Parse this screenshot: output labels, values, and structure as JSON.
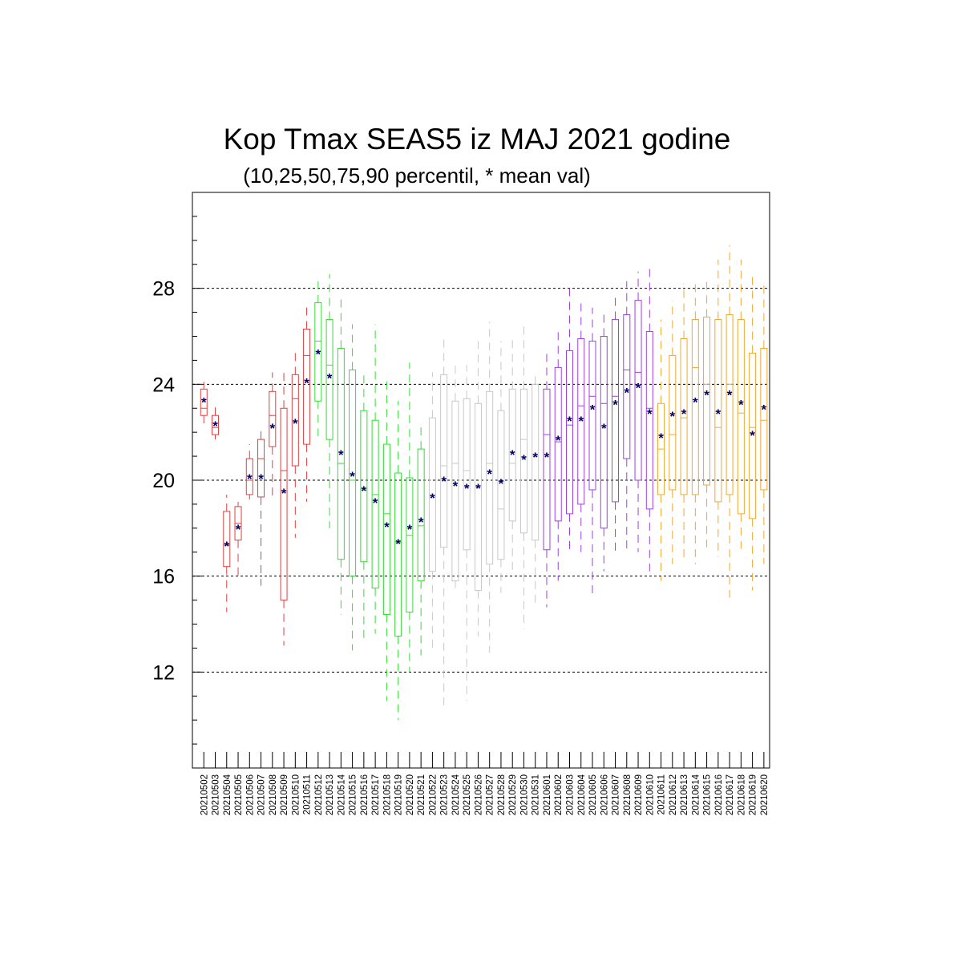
{
  "chart_data": {
    "type": "boxplot",
    "title": "Kop Tmax SEAS5 iz MAJ 2021 godine",
    "subtitle": "(10,25,50,75,90 percentil, * mean val)",
    "ylim": [
      8.0,
      32.0
    ],
    "yticks": [
      12,
      16,
      20,
      24,
      28
    ],
    "grid": "horizontal dashed at major ticks",
    "mean_marker": "*",
    "mean_color": "#000066",
    "groups": [
      {
        "color": "#e04040"
      },
      {
        "color": "#33dd33"
      },
      {
        "color": "#c8c8c8"
      },
      {
        "color": "#a040e0"
      },
      {
        "color": "#f0a830"
      }
    ],
    "categories": [
      "20210502",
      "20210503",
      "20210504",
      "20210505",
      "20210506",
      "20210507",
      "20210508",
      "20210509",
      "20210510",
      "20210511",
      "20210512",
      "20210513",
      "20210514",
      "20210515",
      "20210516",
      "20210517",
      "20210518",
      "20210519",
      "20210520",
      "20210521",
      "20210522",
      "20210523",
      "20210524",
      "20210525",
      "20210526",
      "20210527",
      "20210528",
      "20210529",
      "20210530",
      "20210531",
      "20210601",
      "20210602",
      "20210603",
      "20210604",
      "20210605",
      "20210606",
      "20210607",
      "20210608",
      "20210609",
      "20210610",
      "20210611",
      "20210612",
      "20210613",
      "20210614",
      "20210615",
      "20210616",
      "20210617",
      "20210618",
      "20210619",
      "20210620"
    ],
    "group_index": [
      0,
      0,
      0,
      0,
      0,
      0,
      0,
      0,
      0,
      0,
      1,
      1,
      1,
      1,
      1,
      1,
      1,
      1,
      1,
      1,
      2,
      2,
      2,
      2,
      2,
      2,
      2,
      2,
      2,
      2,
      3,
      3,
      3,
      3,
      3,
      3,
      3,
      3,
      3,
      3,
      4,
      4,
      4,
      4,
      4,
      4,
      4,
      4,
      4,
      4
    ],
    "p10": [
      22.3,
      21.7,
      14.5,
      16.0,
      19.2,
      15.6,
      19.2,
      13.1,
      17.6,
      19.1,
      21.8,
      18.0,
      14.4,
      12.9,
      13.4,
      13.6,
      10.8,
      10.0,
      12.0,
      12.7,
      12.9,
      10.5,
      15.5,
      10.8,
      13.5,
      12.8,
      15.3,
      16.2,
      13.8,
      14.8,
      14.7,
      15.8,
      17.0,
      17.0,
      15.2,
      16.2,
      17.0,
      17.0,
      17.0,
      16.2,
      15.8,
      16.5,
      16.7,
      16.5,
      17.2,
      16.8,
      15.1,
      17.0,
      15.4,
      16.5
    ],
    "p25": [
      22.7,
      21.9,
      16.4,
      17.5,
      19.4,
      19.3,
      21.4,
      15.0,
      20.6,
      21.5,
      23.3,
      21.7,
      16.7,
      16.0,
      16.6,
      15.5,
      14.4,
      13.5,
      14.5,
      15.8,
      16.2,
      17.2,
      15.8,
      17.1,
      15.4,
      16.5,
      16.7,
      18.3,
      17.8,
      17.5,
      17.1,
      18.3,
      18.6,
      19.0,
      19.6,
      18.0,
      19.1,
      20.9,
      20.0,
      18.8,
      19.4,
      19.6,
      19.4,
      19.4,
      19.8,
      19.1,
      19.4,
      18.6,
      18.4,
      19.6
    ],
    "p50": [
      23.0,
      22.2,
      17.3,
      18.2,
      20.0,
      20.9,
      22.7,
      20.4,
      23.4,
      25.2,
      25.8,
      24.8,
      20.7,
      20.0,
      19.6,
      19.4,
      18.6,
      17.4,
      17.7,
      18.1,
      19.3,
      20.6,
      20.7,
      20.4,
      19.7,
      20.7,
      18.8,
      20.7,
      21.7,
      21.0,
      21.9,
      21.6,
      22.3,
      23.1,
      23.5,
      23.2,
      23.5,
      24.6,
      24.5,
      23.0,
      21.3,
      21.9,
      22.6,
      24.7,
      24.0,
      22.2,
      24.0,
      22.8,
      22.2,
      22.5
    ],
    "p75": [
      23.8,
      22.7,
      18.7,
      18.9,
      20.9,
      21.7,
      23.7,
      23.0,
      24.4,
      26.3,
      27.4,
      26.7,
      25.5,
      24.6,
      22.9,
      22.5,
      21.5,
      20.3,
      20.1,
      21.3,
      22.6,
      24.4,
      23.3,
      23.4,
      23.2,
      23.7,
      22.9,
      23.8,
      23.8,
      24.0,
      23.8,
      24.7,
      25.4,
      25.9,
      25.8,
      26.0,
      26.7,
      26.9,
      27.5,
      26.2,
      23.2,
      25.2,
      25.9,
      26.7,
      26.8,
      26.7,
      26.9,
      26.7,
      25.3,
      25.5
    ],
    "p90": [
      24.1,
      23.1,
      19.4,
      19.1,
      21.5,
      22.1,
      24.5,
      24.6,
      25.5,
      27.2,
      28.5,
      28.6,
      27.7,
      26.5,
      24.4,
      26.5,
      24.3,
      23.3,
      24.9,
      22.2,
      24.5,
      25.9,
      24.8,
      24.8,
      25.8,
      26.6,
      25.8,
      26.0,
      26.4,
      24.4,
      25.4,
      26.3,
      28.0,
      27.6,
      27.2,
      27.0,
      27.8,
      28.3,
      28.7,
      28.9,
      26.7,
      27.5,
      28.2,
      28.4,
      28.4,
      29.2,
      29.8,
      29.2,
      28.5,
      28.2
    ],
    "mean": [
      23.3,
      22.3,
      17.3,
      18.0,
      20.1,
      20.1,
      22.2,
      19.5,
      22.4,
      24.1,
      25.3,
      24.3,
      21.1,
      20.2,
      19.6,
      19.1,
      18.1,
      17.4,
      18.0,
      18.3,
      19.3,
      20.0,
      19.8,
      19.7,
      19.7,
      20.3,
      19.9,
      21.1,
      20.9,
      21.0,
      21.0,
      21.7,
      22.5,
      22.5,
      23.0,
      22.2,
      23.2,
      23.7,
      23.9,
      22.8,
      21.8,
      22.7,
      22.8,
      23.3,
      23.6,
      22.8,
      23.6,
      23.2,
      21.9,
      23.0
    ]
  }
}
